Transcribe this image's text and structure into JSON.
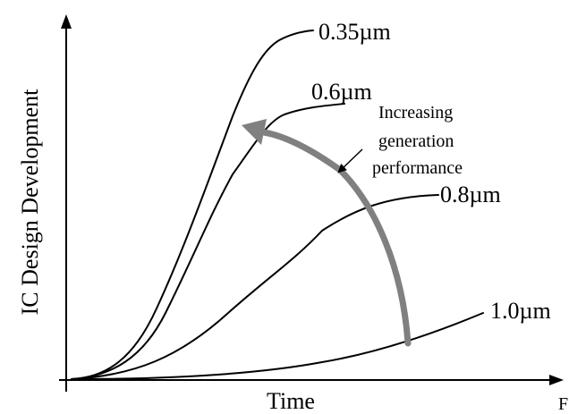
{
  "diagram": {
    "y_axis_label": "IC Design Development",
    "x_axis_label": "Time",
    "corner_text": "F",
    "curves": [
      {
        "id": "c035",
        "label": "0.35µm"
      },
      {
        "id": "c06",
        "label": "0.6µm"
      },
      {
        "id": "c08",
        "label": "0.8µm"
      },
      {
        "id": "c10",
        "label": "1.0µm"
      }
    ],
    "annotation": {
      "lines": [
        "Increasing",
        "generation",
        "performance"
      ]
    },
    "colors": {
      "curve": "#000000",
      "trend_arrow": "#808080"
    }
  }
}
